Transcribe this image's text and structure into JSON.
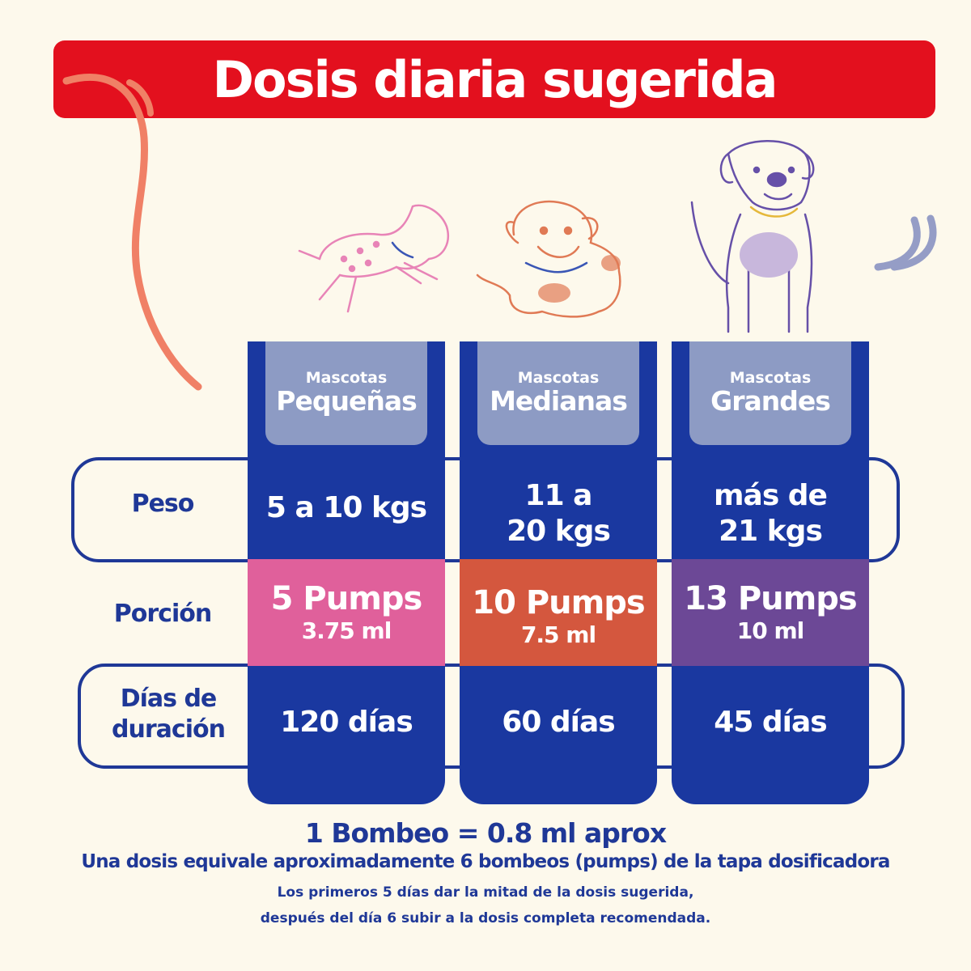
{
  "title": "Dosis diaria sugerida",
  "columns": [
    {
      "label_small": "Mascotas",
      "label_big": "Pequeñas",
      "peso": [
        "5 a 10 kgs"
      ],
      "porcion_pumps": "5 Pumps",
      "porcion_ml": "3.75 ml",
      "dias": "120 días",
      "porcion_color": "#e0609b"
    },
    {
      "label_small": "Mascotas",
      "label_big": "Medianas",
      "peso": [
        "11 a",
        "20 kgs"
      ],
      "porcion_pumps": "10 Pumps",
      "porcion_ml": "7.5 ml",
      "dias": "60 días",
      "porcion_color": "#d4573e"
    },
    {
      "label_small": "Mascotas",
      "label_big": "Grandes",
      "peso": [
        "más de",
        "21 kgs"
      ],
      "porcion_pumps": "13 Pumps",
      "porcion_ml": "10 ml",
      "dias": "45 días",
      "porcion_color": "#6c4896"
    }
  ],
  "rows": {
    "peso": "Peso",
    "porcion": "Porción",
    "dias_line1": "Días de",
    "dias_line2": "duración"
  },
  "footer": {
    "line1": "1 Bombeo = 0.8 ml aprox",
    "line2": "Una dosis equivale aproximadamente 6 bombeos (pumps) de la tapa dosificadora",
    "line3": "Los primeros 5 días dar la mitad de la dosis sugerida,",
    "line4": "después del día 6 subir a la dosis completa recomendada."
  },
  "colors": {
    "background": "#fdf9ec",
    "title_red": "#e3101e",
    "navy": "#1a38a0",
    "tab_gray": "#8d9bc4"
  },
  "illustrations": [
    "small-dog-jumping",
    "medium-bulldog",
    "large-dog-sitting"
  ]
}
